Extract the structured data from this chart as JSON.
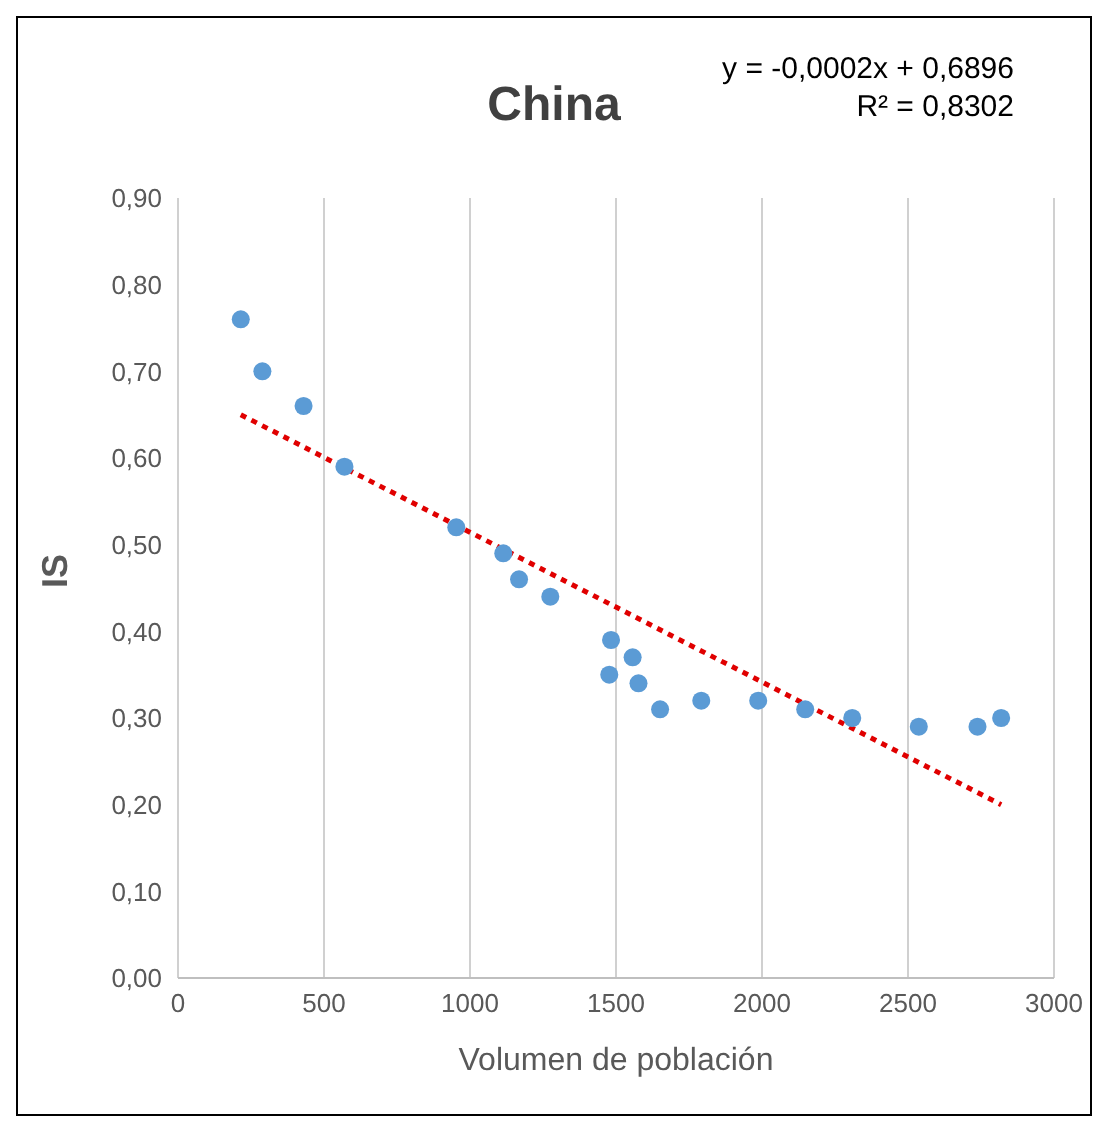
{
  "chart_data": {
    "type": "scatter",
    "title": "China",
    "xlabel": "Volumen de población",
    "ylabel": "IS",
    "annotations": [
      "y = -0,0002x + 0,6896",
      "R² = 0,8302"
    ],
    "series": [
      {
        "color": "#5b9bd5",
        "marker": "circle",
        "x": [
          215,
          289,
          430,
          570,
          953,
          1114,
          1168,
          1275,
          1477,
          1483,
          1557,
          1577,
          1651,
          1792,
          1987,
          2148,
          2309,
          2537,
          2738,
          2819
        ],
        "values": [
          0.76,
          0.7,
          0.66,
          0.59,
          0.52,
          0.49,
          0.46,
          0.44,
          0.35,
          0.39,
          0.37,
          0.34,
          0.31,
          0.32,
          0.32,
          0.31,
          0.3,
          0.29,
          0.29,
          0.3
        ]
      },
      {
        "type": "line",
        "color": "#e00000",
        "line_style": "dotted",
        "marker": "none",
        "x": [
          215,
          2819
        ],
        "values": [
          0.65,
          0.2
        ]
      }
    ],
    "xlim": [
      0,
      3000
    ],
    "xticks": [
      0,
      500,
      1000,
      1500,
      2000,
      2500,
      3000
    ],
    "ylim": [
      0,
      0.9
    ],
    "yticks": [
      {
        "value": 0,
        "label": "0,00"
      },
      {
        "value": 0.1,
        "label": "0,10"
      },
      {
        "value": 0.2,
        "label": "0,20"
      },
      {
        "value": 0.3,
        "label": "0,30"
      },
      {
        "value": 0.4,
        "label": "0,40"
      },
      {
        "value": 0.5,
        "label": "0,50"
      },
      {
        "value": 0.6,
        "label": "0,60"
      },
      {
        "value": 0.7,
        "label": "0,70"
      },
      {
        "value": 0.8,
        "label": "0,80"
      },
      {
        "value": 0.9,
        "label": "0,90"
      }
    ],
    "grid": "x"
  }
}
